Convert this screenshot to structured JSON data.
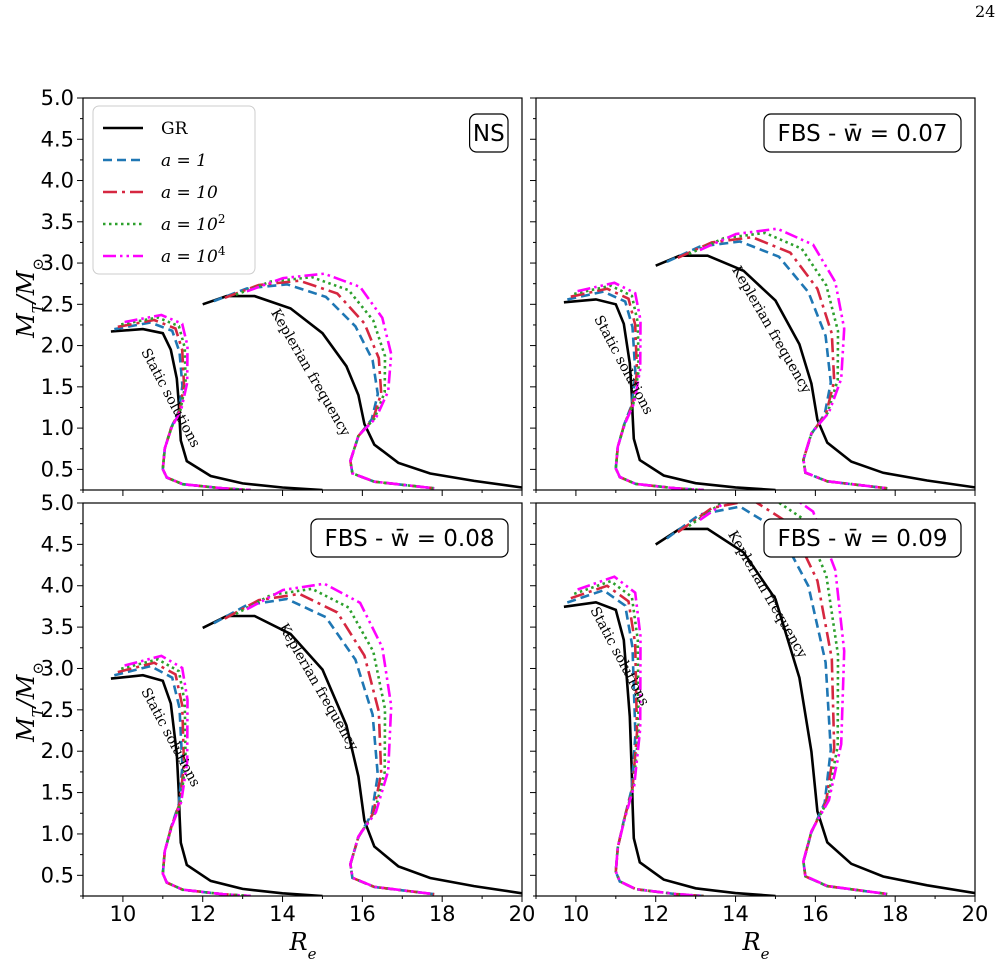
{
  "page_number": "24",
  "chart_data": {
    "type": "line",
    "ylabel": "M_T/M_⊙",
    "xlabel": "R_e",
    "xlim": [
      9,
      20
    ],
    "ylim": [
      0.25,
      5.0
    ],
    "xticks": [
      10,
      12,
      14,
      16,
      18,
      20
    ],
    "yticks": [
      0.5,
      1.0,
      1.5,
      2.0,
      2.5,
      3.0,
      3.5,
      4.0,
      4.5,
      5.0
    ],
    "legend": {
      "placement": "top-left of first panel",
      "entries": [
        {
          "label": "GR",
          "color": "#000000",
          "style": "solid"
        },
        {
          "label": "a = 1",
          "color": "#1f77b4",
          "style": "dashed"
        },
        {
          "label": "a = 10",
          "color": "#d62740",
          "style": "dashdot"
        },
        {
          "label": "a = 10^2",
          "color": "#2ca02c",
          "style": "dotted"
        },
        {
          "label": "a = 10^4",
          "color": "#ff00ff",
          "style": "dashdotdot"
        }
      ]
    },
    "panels": [
      {
        "tag": "NS",
        "annotations": [
          "Static solutions",
          "Keplerian frequency"
        ],
        "static": {
          "top_x": 9.7,
          "top_y": 2.17,
          "peaks": [
            [
              11.1,
              2.2
            ],
            [
              11.3,
              2.25
            ],
            [
              11.4,
              2.32
            ],
            [
              11.4,
              2.34
            ],
            [
              11.5,
              2.35
            ]
          ]
        },
        "kepler": {
          "start_x": 12.0,
          "start_y": 2.5,
          "peaks": [
            [
              13.0,
              2.62
            ],
            [
              14.1,
              2.6
            ],
            [
              14.8,
              2.77
            ],
            [
              15.5,
              2.88
            ],
            [
              15.9,
              2.97
            ]
          ]
        }
      },
      {
        "tag": "FBS - w̄ = 0.07",
        "annotations": [
          "Static solutions",
          "Keplerian frequency"
        ],
        "static": {
          "top_x": 9.7,
          "top_y": 2.57
        },
        "kepler": {
          "start_x": 12.2,
          "start_y": 3.02
        }
      },
      {
        "tag": "FBS - w̄ = 0.08",
        "annotations": [
          "Static solutions",
          "Keplerian frequency"
        ],
        "static": {
          "top_x": 9.7,
          "top_y": 2.97
        },
        "kepler": {
          "start_x": 12.2,
          "start_y": 3.6
        }
      },
      {
        "tag": "FBS - w̄ = 0.09",
        "annotations": [
          "Static solutions",
          "Keplerian frequency"
        ],
        "static": {
          "top_x": 9.6,
          "top_y": 3.95
        },
        "kepler": {
          "start_x": 12.1,
          "start_y": 4.72
        }
      }
    ]
  }
}
